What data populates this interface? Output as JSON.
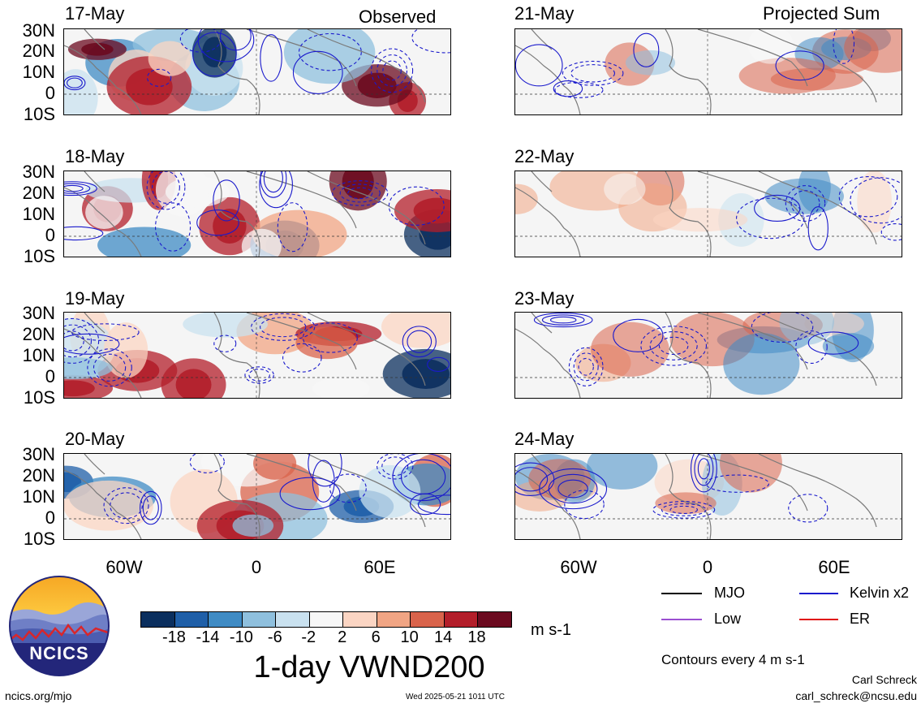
{
  "observed": {
    "tag": "Observed",
    "dates": [
      "17-May",
      "18-May",
      "19-May",
      "20-May"
    ]
  },
  "projected": {
    "tag": "Projected Sum",
    "dates": [
      "21-May",
      "22-May",
      "23-May",
      "24-May"
    ]
  },
  "lat_labels": [
    "30N",
    "20N",
    "10N",
    "0",
    "10S"
  ],
  "lon_labels": [
    "60W",
    "0",
    "60E"
  ],
  "colorbar": {
    "ticks": [
      "-18",
      "-14",
      "-10",
      "-6",
      "-2",
      "2",
      "6",
      "10",
      "14",
      "18"
    ],
    "units": "m s-1",
    "colors": [
      "#0b2f5e",
      "#1f5fa8",
      "#3f8bc4",
      "#8fc0de",
      "#c9e1ef",
      "#f7f7f7",
      "#fbd5c3",
      "#f1a584",
      "#d9634b",
      "#b31e2a",
      "#6b0a1f"
    ]
  },
  "title": "1-day VWND200",
  "legend": {
    "items": [
      {
        "label": "MJO",
        "color": "#000000"
      },
      {
        "label": "Kelvin x2",
        "color": "#1a1acc"
      },
      {
        "label": "Low",
        "color": "#9b4fd1"
      },
      {
        "label": "ER",
        "color": "#e01010"
      }
    ],
    "contour_note": "Contours every 4 m s-1"
  },
  "logo_text": "NCICS",
  "footer": {
    "url": "ncics.org/mjo",
    "timestamp": "Wed 2025-05-21 1011 UTC",
    "author": "Carl Schreck",
    "email": "carl_schreck@ncsu.edu"
  }
}
